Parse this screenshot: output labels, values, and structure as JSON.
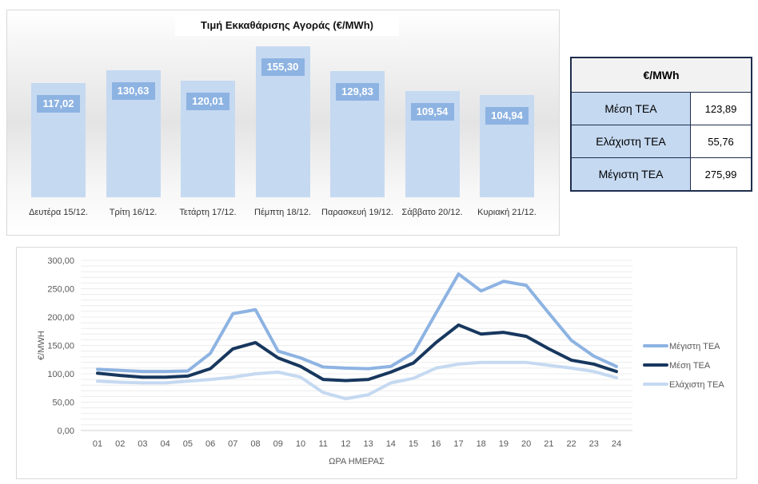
{
  "bar_chart": {
    "title": "Τιμή Εκκαθάρισης Αγοράς (€/MWh)",
    "bar_color": "#c5d9f1",
    "label_color": "#8db3e2"
  },
  "stats_table": {
    "header": "€/MWh",
    "rows": [
      {
        "label": "Μέση ΤΕΑ",
        "value": "123,89"
      },
      {
        "label": "Ελάχιστη ΤΕΑ",
        "value": "55,76"
      },
      {
        "label": "Μέγιστη ΤΕΑ",
        "value": "275,99"
      }
    ]
  },
  "chart_data": [
    {
      "type": "bar",
      "title": "Τιμή Εκκαθάρισης Αγοράς (€/MWh)",
      "categories": [
        "Δευτέρα 15/12.",
        "Τρίτη 16/12.",
        "Τετάρτη 17/12.",
        "Πέμπτη 18/12.",
        "Παρασκευή 19/12.",
        "Σάββατο 20/12.",
        "Κυριακή 21/12."
      ],
      "values": [
        117.02,
        130.63,
        120.01,
        155.3,
        129.83,
        109.54,
        104.94
      ],
      "value_labels": [
        "117,02",
        "130,63",
        "120,01",
        "155,30",
        "129,83",
        "109,54",
        "104,94"
      ],
      "xlabel": "",
      "ylabel": "",
      "grid": false
    },
    {
      "type": "line",
      "title": "",
      "xlabel": "ΩΡΑ ΗΜΕΡΑΣ",
      "ylabel": "€/MWH",
      "x": [
        "01",
        "02",
        "03",
        "04",
        "05",
        "06",
        "07",
        "08",
        "09",
        "10",
        "11",
        "12",
        "13",
        "14",
        "15",
        "16",
        "17",
        "18",
        "19",
        "20",
        "21",
        "22",
        "23",
        "24"
      ],
      "ylim": [
        0,
        300
      ],
      "yticks": [
        "0,00",
        "50,00",
        "100,00",
        "150,00",
        "200,00",
        "250,00",
        "300,00"
      ],
      "grid": true,
      "legend": "right",
      "series": [
        {
          "name": "Μέγιστη ΤΕΑ",
          "color": "#8db3e2",
          "values": [
            108,
            106,
            104,
            104,
            105,
            136,
            206,
            213,
            140,
            128,
            112,
            110,
            109,
            113,
            137,
            207,
            276,
            246,
            263,
            256,
            207,
            159,
            131,
            113
          ]
        },
        {
          "name": "Μέση ΤΕΑ",
          "color": "#17375e",
          "values": [
            101,
            97,
            94,
            94,
            96,
            109,
            144,
            155,
            128,
            113,
            90,
            88,
            90,
            103,
            119,
            155,
            186,
            170,
            173,
            166,
            144,
            124,
            117,
            104
          ]
        },
        {
          "name": "Ελάχιστη ΤΕΑ",
          "color": "#c5d9f1",
          "values": [
            87,
            85,
            84,
            84,
            87,
            90,
            94,
            100,
            103,
            94,
            67,
            56,
            63,
            84,
            92,
            110,
            117,
            120,
            120,
            120,
            115,
            110,
            104,
            93
          ]
        }
      ]
    }
  ]
}
